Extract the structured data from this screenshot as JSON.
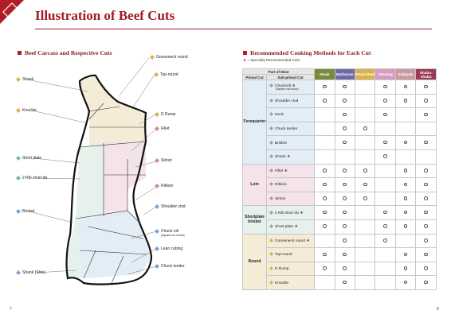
{
  "page": {
    "title": "Illustration of Beef Cuts",
    "left_page_number": "7",
    "right_page_number": "8"
  },
  "left_section": {
    "title": "Beef Carcass and Respective Cuts"
  },
  "right_section": {
    "title": "Recommended Cooking Methods for Each Cut",
    "legend": "= Specially Recommended Cuts"
  },
  "cut_labels": {
    "gooseneck_round": "Gooseneck round",
    "top_round": "Top-round",
    "d_rump": "D Rump",
    "fillet": "Fillet",
    "sirloin": "Sirloin",
    "ribloin": "Ribloin",
    "shoulder_clod": "Shoulder clod",
    "chuck_roll": "Chuck roll",
    "chuck_roll_note": "(square cut chuck)",
    "lean_cubing": "Lean cubing",
    "chuck_tender": "Chuck tender",
    "shank": "Shank",
    "knuckle": "Knuckle",
    "short_plate": "Short plate",
    "rib_short_rib": "2 Rib short rib",
    "brisket": "Brisket",
    "shank_shin": "Shank (Shin)"
  },
  "colors": {
    "brand_red": "#a01b22",
    "forequarter": "#e3edf5",
    "loin": "#f4e3ea",
    "shortplate": "#e6f1ec",
    "round": "#f4ecd7",
    "steak": "#7a8a3d",
    "barbecue": "#6f6aa4",
    "roast_beef": "#d8b24a",
    "stewing": "#d79cc2",
    "sukiyaki": "#c99aa0",
    "shabu_shabu": "#9a3a56"
  },
  "table": {
    "header_part": "Part of Meat",
    "header_primal": "Primal Cut",
    "header_sub": "Sub-primal Cut",
    "methods": [
      "Steak",
      "Barbecue",
      "Roast Beef",
      "Stewing",
      "Sukiyaki",
      "Shabu-shabu"
    ],
    "groups": [
      {
        "name": "Forequarter",
        "rows": [
          {
            "name": "Chuckroll",
            "star": "★",
            "note": "(Square cut chuck)",
            "marks": [
              true,
              true,
              false,
              true,
              true,
              true
            ]
          },
          {
            "name": "Shoulder clod",
            "star": "",
            "note": "",
            "marks": [
              true,
              true,
              false,
              true,
              true,
              true
            ]
          },
          {
            "name": "Neck",
            "star": "",
            "note": "",
            "marks": [
              false,
              true,
              false,
              true,
              false,
              true
            ]
          },
          {
            "name": "Chuck tender",
            "star": "",
            "note": "",
            "marks": [
              false,
              true,
              true,
              false,
              false,
              false
            ]
          },
          {
            "name": "Brisket",
            "star": "",
            "note": "",
            "marks": [
              false,
              true,
              false,
              true,
              true,
              true
            ]
          },
          {
            "name": "Shank",
            "star": "★",
            "note": "",
            "marks": [
              false,
              false,
              false,
              true,
              false,
              false
            ]
          }
        ]
      },
      {
        "name": "Loin",
        "rows": [
          {
            "name": "Fillet",
            "star": "★",
            "note": "",
            "marks": [
              true,
              true,
              true,
              false,
              true,
              true
            ]
          },
          {
            "name": "Ribloin",
            "star": "",
            "note": "",
            "marks": [
              true,
              true,
              true,
              false,
              true,
              true
            ]
          },
          {
            "name": "Sirloin",
            "star": "",
            "note": "",
            "marks": [
              true,
              true,
              true,
              false,
              true,
              true
            ]
          }
        ]
      },
      {
        "name": "Shortplate brisket",
        "rows": [
          {
            "name": "2 Rib short rib",
            "star": "★",
            "note": "",
            "marks": [
              true,
              true,
              false,
              true,
              true,
              true
            ]
          },
          {
            "name": "Short plate",
            "star": "★",
            "note": "",
            "marks": [
              true,
              true,
              false,
              true,
              true,
              true
            ]
          }
        ]
      },
      {
        "name": "Round",
        "rows": [
          {
            "name": "Gooseneck round",
            "star": "★",
            "note": "",
            "marks": [
              false,
              true,
              false,
              true,
              false,
              true
            ]
          },
          {
            "name": "Top-round",
            "star": "",
            "note": "",
            "marks": [
              true,
              true,
              false,
              false,
              true,
              true
            ]
          },
          {
            "name": "D Rump",
            "star": "",
            "note": "",
            "marks": [
              true,
              true,
              false,
              false,
              true,
              true
            ]
          },
          {
            "name": "Knuckle",
            "star": "",
            "note": "",
            "marks": [
              false,
              true,
              false,
              false,
              true,
              true
            ]
          }
        ]
      }
    ]
  }
}
